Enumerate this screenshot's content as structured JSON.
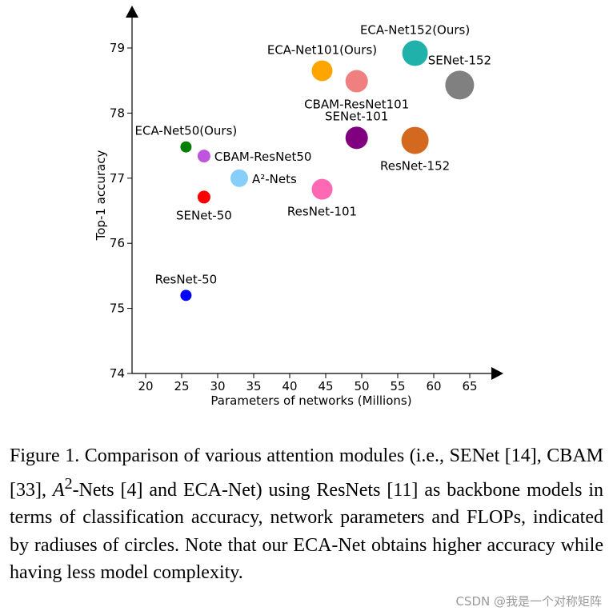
{
  "chart_data": {
    "type": "scatter",
    "xlabel": "Parameters of networks (Millions)",
    "ylabel": "Top-1 accuracy",
    "xlim": [
      18,
      71
    ],
    "ylim": [
      74,
      79.5
    ],
    "xticks": [
      20,
      25,
      30,
      35,
      40,
      45,
      50,
      55,
      60,
      65
    ],
    "yticks": [
      74,
      75,
      76,
      77,
      78,
      79
    ],
    "grid": false,
    "points": [
      {
        "label": "ResNet-50",
        "x": 25.6,
        "y": 75.2,
        "r": 7,
        "color": "#0000ff",
        "label_pos": "above"
      },
      {
        "label": "SENet-50",
        "x": 28.1,
        "y": 76.71,
        "r": 8,
        "color": "#ff0000",
        "label_pos": "below"
      },
      {
        "label": "A²-Nets",
        "x": 33.0,
        "y": 77.0,
        "r": 11,
        "color": "#87cefa",
        "label_pos": "right"
      },
      {
        "label": "ECA-Net50(Ours)",
        "x": 25.6,
        "y": 77.48,
        "r": 7,
        "color": "#008000",
        "label_pos": "above"
      },
      {
        "label": "CBAM-ResNet50",
        "x": 28.1,
        "y": 77.34,
        "r": 8,
        "color": "#bf54df",
        "label_pos": "right"
      },
      {
        "label": "ResNet-101",
        "x": 44.5,
        "y": 76.83,
        "r": 13,
        "color": "#ff69b4",
        "label_pos": "below"
      },
      {
        "label": "SENet-101",
        "x": 49.3,
        "y": 77.62,
        "r": 14,
        "color": "#800080",
        "label_pos": "above"
      },
      {
        "label": "ECA-Net101(Ours)",
        "x": 44.5,
        "y": 78.65,
        "r": 13,
        "color": "#ffa500",
        "label_pos": "above"
      },
      {
        "label": "CBAM-ResNet101",
        "x": 49.3,
        "y": 78.49,
        "r": 14,
        "color": "#f08080",
        "label_pos": "below"
      },
      {
        "label": "ResNet-152",
        "x": 57.4,
        "y": 77.58,
        "r": 17,
        "color": "#d2691e",
        "label_pos": "below"
      },
      {
        "label": "ECA-Net152(Ours)",
        "x": 57.4,
        "y": 78.92,
        "r": 16,
        "color": "#20b2aa",
        "label_pos": "above"
      },
      {
        "label": "SENet-152",
        "x": 63.6,
        "y": 78.43,
        "r": 18,
        "color": "#808080",
        "label_pos": "above"
      }
    ]
  },
  "caption": {
    "part1": "Figure 1. Comparison of various attention modules (i.e., SENet [14], CBAM [33], ",
    "italic": "A",
    "sup": "2",
    "part2": "-Nets [4] and ECA-Net) using ResNets [11] as backbone models in terms of classification accuracy, network parameters and FLOPs, indicated by radiuses of circles. Note that our ECA-Net obtains higher accuracy while having less model complexity."
  },
  "watermark": "CSDN @我是一个对称矩阵"
}
